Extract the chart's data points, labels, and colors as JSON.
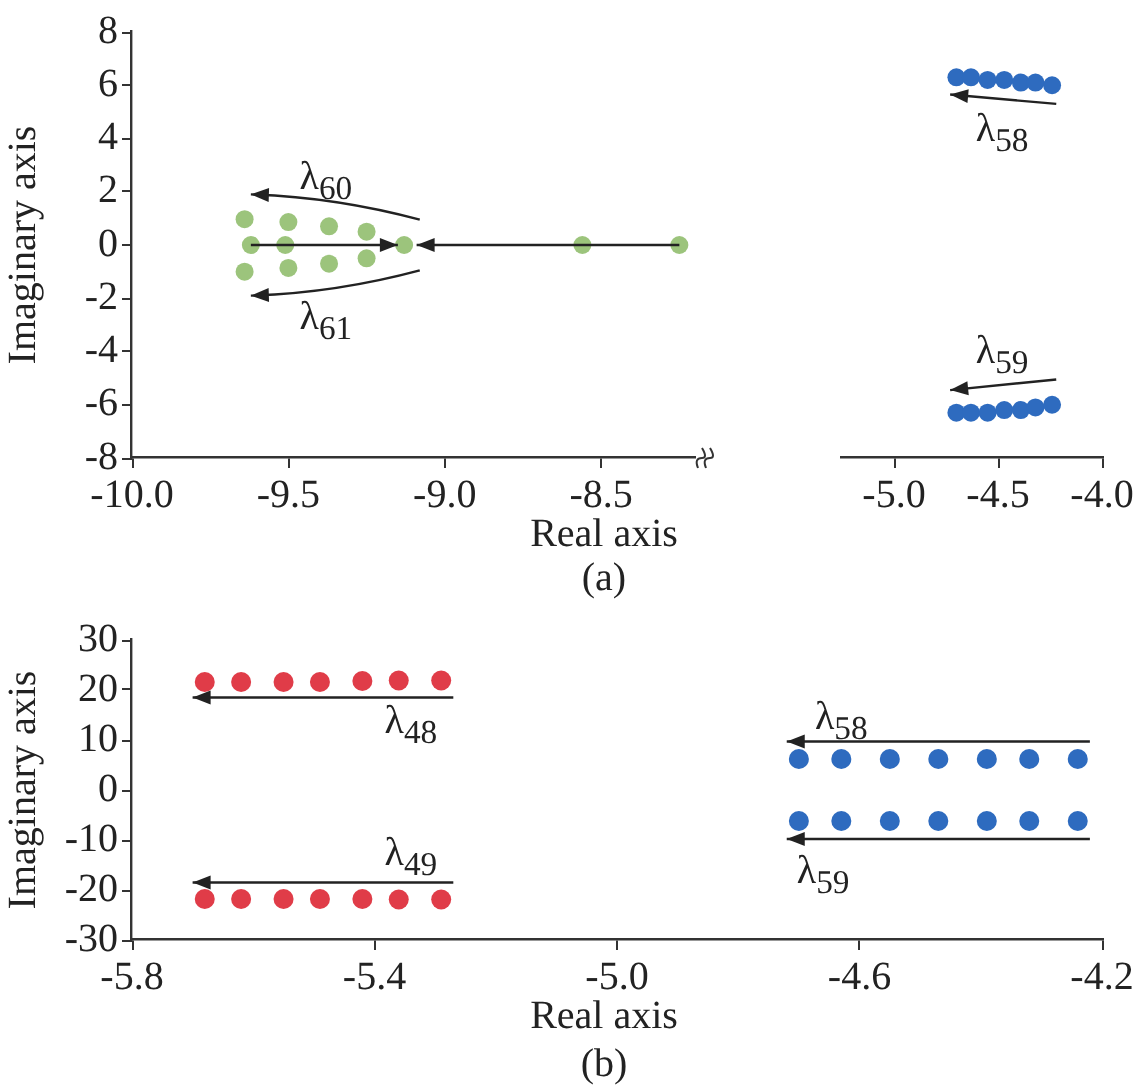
{
  "chart_data": [
    {
      "type": "scatter",
      "xlabel": "Real axis",
      "ylabel": "Imaginary axis",
      "xlim": [
        -10,
        -8.2
      ],
      "xticks": [
        {
          "value": -10,
          "label": "-10.0"
        },
        -9.5,
        {
          "value": -9,
          "label": "-9.0"
        },
        -8.5
      ],
      "ylim": [
        -8,
        8
      ],
      "yticks": [
        -8,
        -6,
        -4,
        -2,
        0,
        2,
        4,
        6,
        8
      ],
      "grid": false,
      "legend": false,
      "marker": "circle",
      "series": [
        {
          "color": "#9cc47c",
          "x": [
            -9.64,
            -9.5,
            -9.37,
            -9.25,
            -9.62,
            -9.51,
            -9.13,
            -8.56,
            -8.25,
            -9.64,
            -9.5,
            -9.37,
            -9.25
          ],
          "values": [
            0.97,
            0.86,
            0.7,
            0.5,
            0,
            0,
            0,
            0,
            0,
            -1.0,
            -0.86,
            -0.7,
            -0.5
          ]
        }
      ],
      "annotations": [
        "(a)",
        "λ$_{60}$",
        "λ$_{61}$"
      ]
    },
    {
      "type": "scatter",
      "xlim": [
        -5.25,
        -4.0
      ],
      "xticks": [
        {
          "value": -5,
          "label": "-5.0"
        },
        -4.5,
        {
          "value": -4,
          "label": "-4.0"
        }
      ],
      "ylim": [
        -8,
        8
      ],
      "yticks": [
        -8,
        -6,
        -4,
        -2,
        0,
        2,
        4,
        6,
        8
      ],
      "tick_labels": "x",
      "grid": false,
      "legend": false,
      "marker": "circle",
      "series": [
        {
          "color": "#2e6bbf",
          "x": [
            -4.7,
            -4.63,
            -4.55,
            -4.47,
            -4.39,
            -4.32,
            -4.24
          ],
          "values": [
            6.3,
            6.3,
            6.2,
            6.2,
            6.1,
            6.1,
            6.0
          ]
        },
        {
          "color": "#2e6bbf",
          "x": [
            -4.7,
            -4.63,
            -4.55,
            -4.47,
            -4.39,
            -4.32,
            -4.24
          ],
          "values": [
            -6.3,
            -6.3,
            -6.3,
            -6.2,
            -6.2,
            -6.1,
            -6.0
          ]
        }
      ],
      "annotations": [
        "λ$_{58}$",
        "λ$_{59}$"
      ]
    },
    {
      "type": "scatter",
      "xlabel": "Real axis",
      "ylabel": "Imaginary axis",
      "xlim": [
        -5.8,
        -4.2
      ],
      "xticks": [
        -5.8,
        -5.4,
        {
          "value": -5,
          "label": "-5.0"
        },
        -4.6,
        -4.2
      ],
      "ylim": [
        -30,
        30
      ],
      "yticks": [
        -30,
        -20,
        -10,
        0,
        10,
        20,
        30
      ],
      "grid": false,
      "legend": false,
      "marker": "circle",
      "series": [
        {
          "color": "#e03c48",
          "x": [
            -5.68,
            -5.62,
            -5.55,
            -5.49,
            -5.42,
            -5.36,
            -5.29
          ],
          "values": [
            21.6,
            21.6,
            21.6,
            21.6,
            21.8,
            21.9,
            21.9
          ]
        },
        {
          "color": "#e03c48",
          "x": [
            -5.68,
            -5.62,
            -5.55,
            -5.49,
            -5.42,
            -5.36,
            -5.29
          ],
          "values": [
            -21.8,
            -21.8,
            -21.8,
            -21.8,
            -21.8,
            -21.9,
            -21.9
          ]
        },
        {
          "color": "#2e6bbf",
          "x": [
            -4.7,
            -4.63,
            -4.55,
            -4.47,
            -4.39,
            -4.32,
            -4.24
          ],
          "values": [
            6.2,
            6.2,
            6.2,
            6.2,
            6.2,
            6.2,
            6.2
          ]
        },
        {
          "color": "#2e6bbf",
          "x": [
            -4.7,
            -4.63,
            -4.55,
            -4.47,
            -4.39,
            -4.32,
            -4.24
          ],
          "values": [
            -6.2,
            -6.2,
            -6.2,
            -6.2,
            -6.2,
            -6.2,
            -6.2
          ]
        }
      ],
      "annotations": [
        "(b)",
        "λ$_{48}$",
        "λ$_{49}$",
        "λ$_{58}$",
        "λ$_{59}$"
      ]
    }
  ]
}
